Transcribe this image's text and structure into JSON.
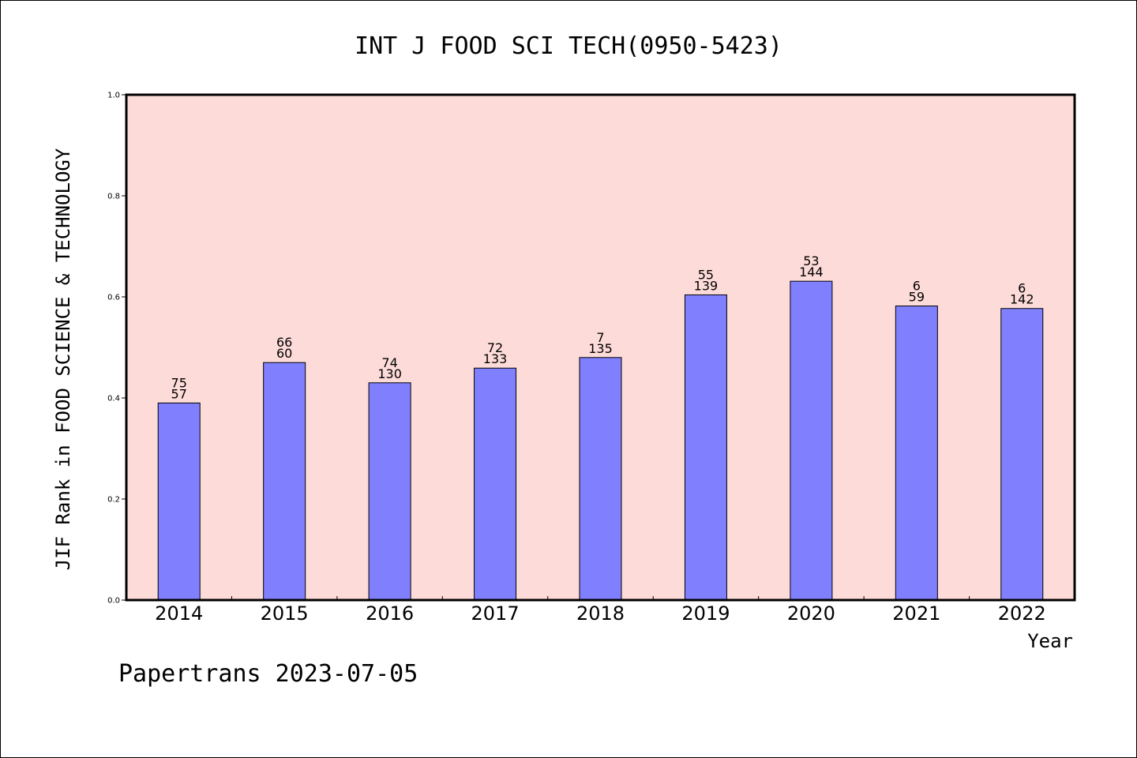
{
  "chart_data": {
    "type": "bar",
    "title": "INT J FOOD SCI TECH(0950-5423)",
    "xlabel": "Year",
    "ylabel": "JIF Rank in FOOD SCIENCE & TECHNOLOGY",
    "categories": [
      "2014",
      "2015",
      "2016",
      "2017",
      "2018",
      "2019",
      "2020",
      "2021",
      "2022"
    ],
    "values": [
      0.39,
      0.47,
      0.43,
      0.459,
      0.48,
      0.604,
      0.631,
      0.582,
      0.577
    ],
    "labels_top": [
      "75",
      "66",
      "74",
      "72",
      "7",
      "55",
      "53",
      "6",
      "6"
    ],
    "labels_bottom": [
      "57",
      "60",
      "130",
      "133",
      "135",
      "139",
      "144",
      "59",
      "142"
    ],
    "ylim": [
      0,
      1.0
    ],
    "yticks": [
      "0.0",
      "0.2",
      "0.4",
      "0.6",
      "0.8",
      "1.0"
    ],
    "grid": false,
    "colors": {
      "bar": "#8080ff",
      "plot_background": "#fddbd8",
      "axes": "#000000"
    }
  },
  "footer": {
    "text": "Papertrans 2023-07-05"
  }
}
